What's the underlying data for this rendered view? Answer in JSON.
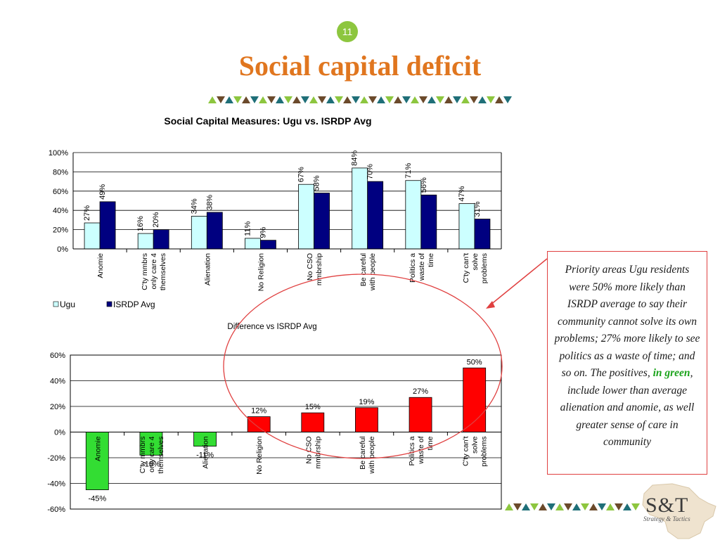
{
  "slide": {
    "number": "11",
    "title": "Social capital deficit"
  },
  "callout": {
    "text_before": "Priority areas Ugu residents were 50% more likely than ISRDP average to say their community cannot solve its own problems; 27% more likely to see politics as a waste of  time; and so on. The positives, ",
    "highlight": "in green",
    "text_after": ", include lower than average alienation and anomie, as well greater sense of  care in community"
  },
  "logo": {
    "text": "S&T",
    "subtitle": "Strategy & Tactics"
  },
  "colors": {
    "title": "#e0761f",
    "ugu": "#ccffff",
    "isrdp": "#000080",
    "negative": "#33dd33",
    "positive": "#ff0000",
    "callout_border": "#e04040"
  },
  "chart_data": [
    {
      "type": "bar",
      "title": "Social Capital Measures: Ugu vs. ISRDP Avg",
      "categories": [
        [
          "Anomie"
        ],
        [
          "C'ty mmbrs",
          "only care 4",
          "themselves"
        ],
        [
          "Alienation"
        ],
        [
          "No Religion"
        ],
        [
          "No CSO",
          "mmbrship"
        ],
        [
          "Be careful",
          "with people"
        ],
        [
          "Politics a",
          "waste of",
          "time"
        ],
        [
          "C'ty can't",
          "solve",
          "problems"
        ]
      ],
      "series": [
        {
          "name": "Ugu",
          "values": [
            27,
            16,
            34,
            11,
            67,
            84,
            71,
            47
          ],
          "labels": [
            "27%",
            "16%",
            "34%",
            "11%",
            "67%",
            "84%",
            "71%",
            "47%"
          ],
          "color": "#ccffff"
        },
        {
          "name": "ISRDP Avg",
          "values": [
            49,
            20,
            38,
            9,
            58,
            70,
            56,
            31
          ],
          "labels": [
            "49%",
            "20%",
            "38%",
            "9%",
            "58%",
            "70%",
            "56%",
            "31%"
          ],
          "color": "#000080"
        }
      ],
      "ylim": [
        0,
        100
      ],
      "yticks": [
        "0%",
        "20%",
        "40%",
        "60%",
        "80%",
        "100%"
      ],
      "legend": "bottom-left",
      "grid": true
    },
    {
      "type": "bar",
      "title": "Difference vs ISRDP Avg",
      "categories": [
        [
          "Anomie"
        ],
        [
          "C'ty mmbrs",
          "only care 4",
          "themselves"
        ],
        [
          "Alienation"
        ],
        [
          "No Religion"
        ],
        [
          "No CSO",
          "mmbrship"
        ],
        [
          "Be careful",
          "with people"
        ],
        [
          "Politics a",
          "waste of",
          "time"
        ],
        [
          "C'ty can't",
          "solve",
          "problems"
        ]
      ],
      "values": [
        -45,
        -18,
        -11,
        12,
        15,
        19,
        27,
        50
      ],
      "labels": [
        "-45%",
        "-18%",
        "-11%",
        "12%",
        "15%",
        "19%",
        "27%",
        "50%"
      ],
      "ylim": [
        -60,
        60
      ],
      "yticks": [
        "-60%",
        "-40%",
        "-20%",
        "0%",
        "20%",
        "40%",
        "60%"
      ],
      "grid": true
    }
  ]
}
